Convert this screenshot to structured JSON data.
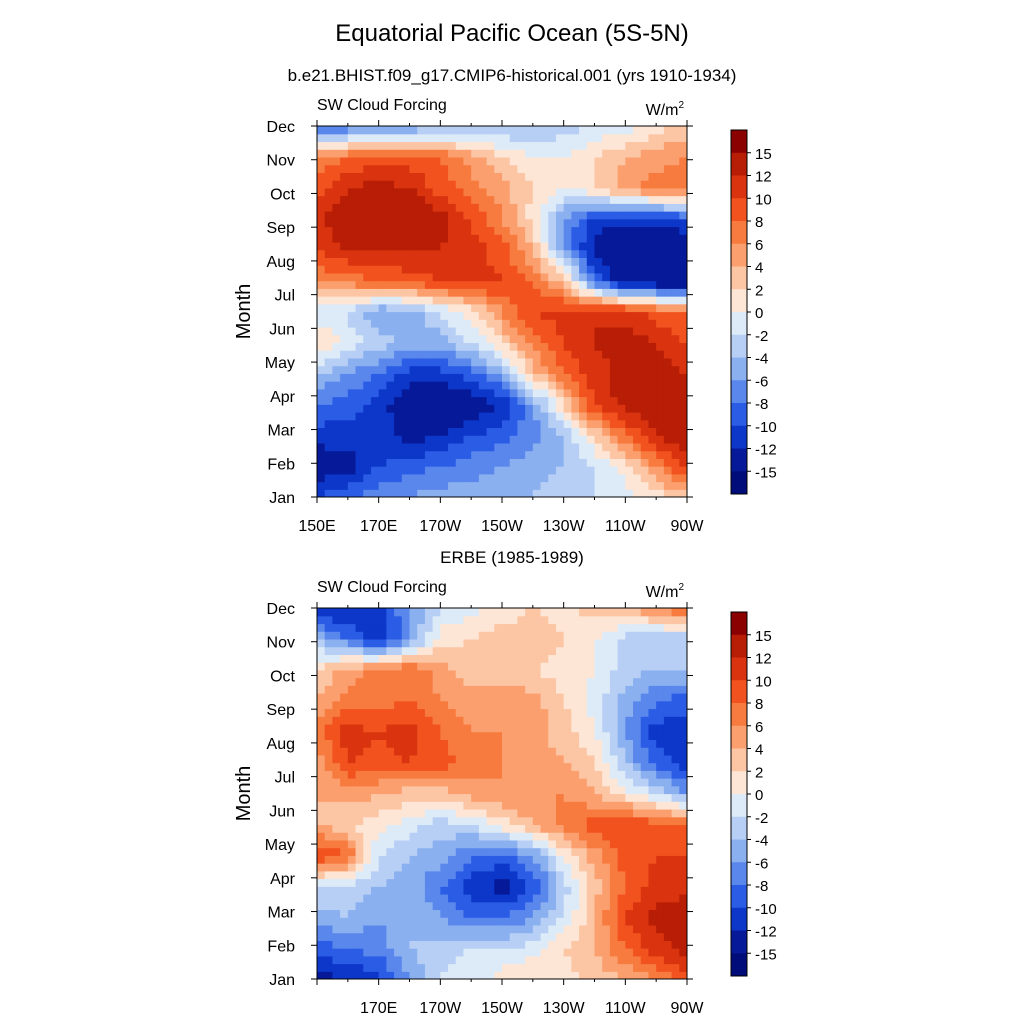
{
  "figure": {
    "title": "Equatorial Pacific Ocean (5S-5N)"
  },
  "colorbar": {
    "levels": [
      "15",
      "12",
      "10",
      "8",
      "6",
      "4",
      "2",
      "0",
      "-2",
      "-4",
      "-6",
      "-8",
      "-10",
      "-12",
      "-15"
    ],
    "colors": [
      "#8b0000",
      "#b81d05",
      "#d9340f",
      "#f2531e",
      "#f77a3e",
      "#fb9f6e",
      "#fcc5a3",
      "#fde6d6",
      "#ddeaf7",
      "#b8cff5",
      "#8bb0f0",
      "#5a87ec",
      "#2b5ce6",
      "#0d37c9",
      "#061a99",
      "#000c7a"
    ]
  },
  "chart_data": [
    {
      "type": "heatmap",
      "title": "b.e21.BHIST.f09_g17.CMIP6-historical.001 (yrs 1910-1934)",
      "left_label": "SW Cloud Forcing",
      "units_label": "W/m",
      "units_superscript": "2",
      "ylabel": "Month",
      "x_tick_labels": [
        "150E",
        "170E",
        "170W",
        "150W",
        "130W",
        "110W",
        "90W"
      ],
      "y_tick_labels": [
        "Jan",
        "Feb",
        "Mar",
        "Apr",
        "May",
        "Jun",
        "Jul",
        "Aug",
        "Sep",
        "Oct",
        "Nov",
        "Dec"
      ],
      "x": [
        150,
        160,
        170,
        180,
        190,
        200,
        210,
        220,
        230,
        240,
        250,
        260,
        270
      ],
      "y": [
        "Jan",
        "Feb",
        "Mar",
        "Apr",
        "May",
        "Jun",
        "Jul",
        "Aug",
        "Sep",
        "Oct",
        "Nov",
        "Dec",
        "Jan"
      ],
      "values": [
        [
          -10,
          -8,
          -7,
          -6,
          -5,
          -5,
          -4,
          -4,
          -3,
          -2,
          -1,
          1,
          3
        ],
        [
          -14,
          -13,
          -10,
          -9,
          -8,
          -7,
          -6,
          -5,
          -4,
          -2,
          1,
          6,
          11
        ],
        [
          -11,
          -11,
          -11,
          -13,
          -12,
          -10,
          -9,
          -7,
          -4,
          2,
          8,
          12,
          14
        ],
        [
          -8,
          -9,
          -11,
          -14,
          -15,
          -14,
          -12,
          -6,
          2,
          10,
          13,
          14,
          14
        ],
        [
          -4,
          -6,
          -8,
          -11,
          -11,
          -9,
          -5,
          3,
          8,
          11,
          13,
          13,
          12
        ],
        [
          3,
          -1,
          -3,
          -5,
          -5,
          -2,
          2,
          7,
          10,
          12,
          13,
          12,
          10
        ],
        [
          -2,
          -2,
          -6,
          -5,
          -2,
          1,
          6,
          10,
          11,
          12,
          11,
          9,
          8
        ],
        [
          6,
          7,
          8,
          9,
          10,
          11,
          10,
          8,
          3,
          -8,
          -14,
          -15,
          -15
        ],
        [
          10,
          12,
          12,
          12,
          12,
          11,
          9,
          4,
          -6,
          -13,
          -15,
          -15,
          -15
        ],
        [
          11,
          15,
          15,
          15,
          13,
          10,
          6,
          1,
          -6,
          -11,
          -11,
          -11,
          -10
        ],
        [
          9,
          12,
          13,
          12,
          9,
          7,
          5,
          2,
          0,
          2,
          5,
          7,
          8
        ],
        [
          6,
          8,
          9,
          9,
          8,
          5,
          2,
          0,
          0,
          2,
          4,
          5,
          6
        ],
        [
          -10,
          -8,
          -7,
          -6,
          -5,
          -5,
          -4,
          -4,
          -3,
          -2,
          -1,
          1,
          3
        ]
      ],
      "levels": [
        -15,
        -12,
        -10,
        -8,
        -6,
        -4,
        -2,
        0,
        2,
        4,
        6,
        8,
        10,
        12,
        15
      ],
      "xlim": [
        150,
        270
      ],
      "ylim": [
        "Jan",
        "Dec"
      ]
    },
    {
      "type": "heatmap",
      "title": "ERBE (1985-1989)",
      "left_label": "SW Cloud Forcing",
      "units_label": "W/m",
      "units_superscript": "2",
      "ylabel": "Month",
      "x_tick_labels": [
        "170E",
        "170W",
        "150W",
        "130W",
        "110W",
        "90W"
      ],
      "y_tick_labels": [
        "Jan",
        "Feb",
        "Mar",
        "Apr",
        "May",
        "Jun",
        "Jul",
        "Aug",
        "Sep",
        "Oct",
        "Nov",
        "Dec"
      ],
      "x": [
        150,
        160,
        170,
        180,
        190,
        200,
        210,
        220,
        230,
        240,
        250,
        260,
        270
      ],
      "y": [
        "Jan",
        "Feb",
        "Mar",
        "Apr",
        "May",
        "Jun",
        "Jul",
        "Aug",
        "Sep",
        "Oct",
        "Nov",
        "Dec",
        "Jan"
      ],
      "values": [
        [
          -13,
          -12,
          -11,
          -6,
          -2,
          -1,
          1,
          2,
          1,
          3,
          4,
          6,
          9
        ],
        [
          -9,
          -8,
          -7,
          -4,
          -3,
          -2,
          -2,
          -1,
          2,
          4,
          8,
          11,
          13
        ],
        [
          -5,
          -4,
          -6,
          -4,
          -6,
          -8,
          -8,
          -6,
          -2,
          4,
          10,
          13,
          14
        ],
        [
          -2,
          -3,
          -4,
          -5,
          -8,
          -11,
          -13,
          -10,
          -3,
          3,
          8,
          11,
          11
        ],
        [
          10,
          8,
          -2,
          -4,
          -5,
          -8,
          -9,
          -6,
          0,
          5,
          9,
          10,
          10
        ],
        [
          4,
          2,
          1,
          -1,
          -3,
          -2,
          1,
          4,
          7,
          9,
          10,
          9,
          8
        ],
        [
          4,
          5,
          4,
          3,
          3,
          5,
          6,
          6,
          6,
          4,
          1,
          -2,
          -6
        ],
        [
          5,
          10,
          9,
          10,
          9,
          7,
          6,
          5,
          4,
          2,
          -4,
          -9,
          -11
        ],
        [
          7,
          11,
          10,
          11,
          8,
          6,
          6,
          5,
          3,
          0,
          -6,
          -11,
          -12
        ],
        [
          4,
          7,
          7,
          8,
          6,
          5,
          6,
          5,
          2,
          -1,
          -5,
          -8,
          -9
        ],
        [
          2,
          5,
          7,
          8,
          5,
          3,
          2,
          2,
          1,
          0,
          -3,
          -4,
          -4
        ],
        [
          -4,
          -8,
          -12,
          -6,
          1,
          2,
          3,
          3,
          2,
          0,
          -3,
          -4,
          -4
        ],
        [
          -13,
          -12,
          -11,
          -6,
          -2,
          -1,
          1,
          2,
          1,
          3,
          4,
          6,
          9
        ]
      ],
      "levels": [
        -15,
        -12,
        -10,
        -8,
        -6,
        -4,
        -2,
        0,
        2,
        4,
        6,
        8,
        10,
        12,
        15
      ],
      "xlim": [
        150,
        270
      ],
      "ylim": [
        "Jan",
        "Dec"
      ]
    }
  ]
}
